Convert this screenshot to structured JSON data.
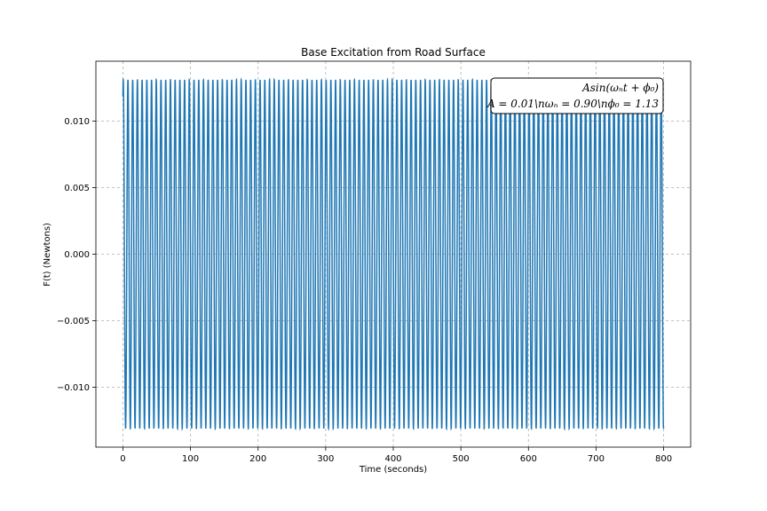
{
  "chart_data": {
    "type": "line",
    "title": "Base Excitation from Road Surface",
    "xlabel": "Time (seconds)",
    "ylabel": "F(t) (Newtons)",
    "xlim": [
      -40,
      840
    ],
    "ylim": [
      -0.0145,
      0.0145
    ],
    "x_ticks": [
      0,
      100,
      200,
      300,
      400,
      500,
      600,
      700,
      800
    ],
    "x_tick_labels": [
      "0",
      "100",
      "200",
      "300",
      "400",
      "500",
      "600",
      "700",
      "800"
    ],
    "y_ticks": [
      -0.01,
      -0.005,
      0.0,
      0.005,
      0.01
    ],
    "y_tick_labels": [
      "−0.010",
      "−0.005",
      "0.000",
      "0.005",
      "0.010"
    ],
    "grid": true,
    "series": [
      {
        "color": "#1f77b4",
        "function": "A*sin(omega_n*t + phi0)",
        "amplitude": 0.0131,
        "omega_n": 0.9,
        "phi0": 1.13,
        "t_start": 0,
        "t_end": 800
      }
    ],
    "annotation": {
      "line1": "Asin(ωₙt + ϕ₀)",
      "line2": "A = 0.01\\nωₙ = 0.90\\nϕ₀ = 1.13",
      "placement": "top-right"
    }
  }
}
